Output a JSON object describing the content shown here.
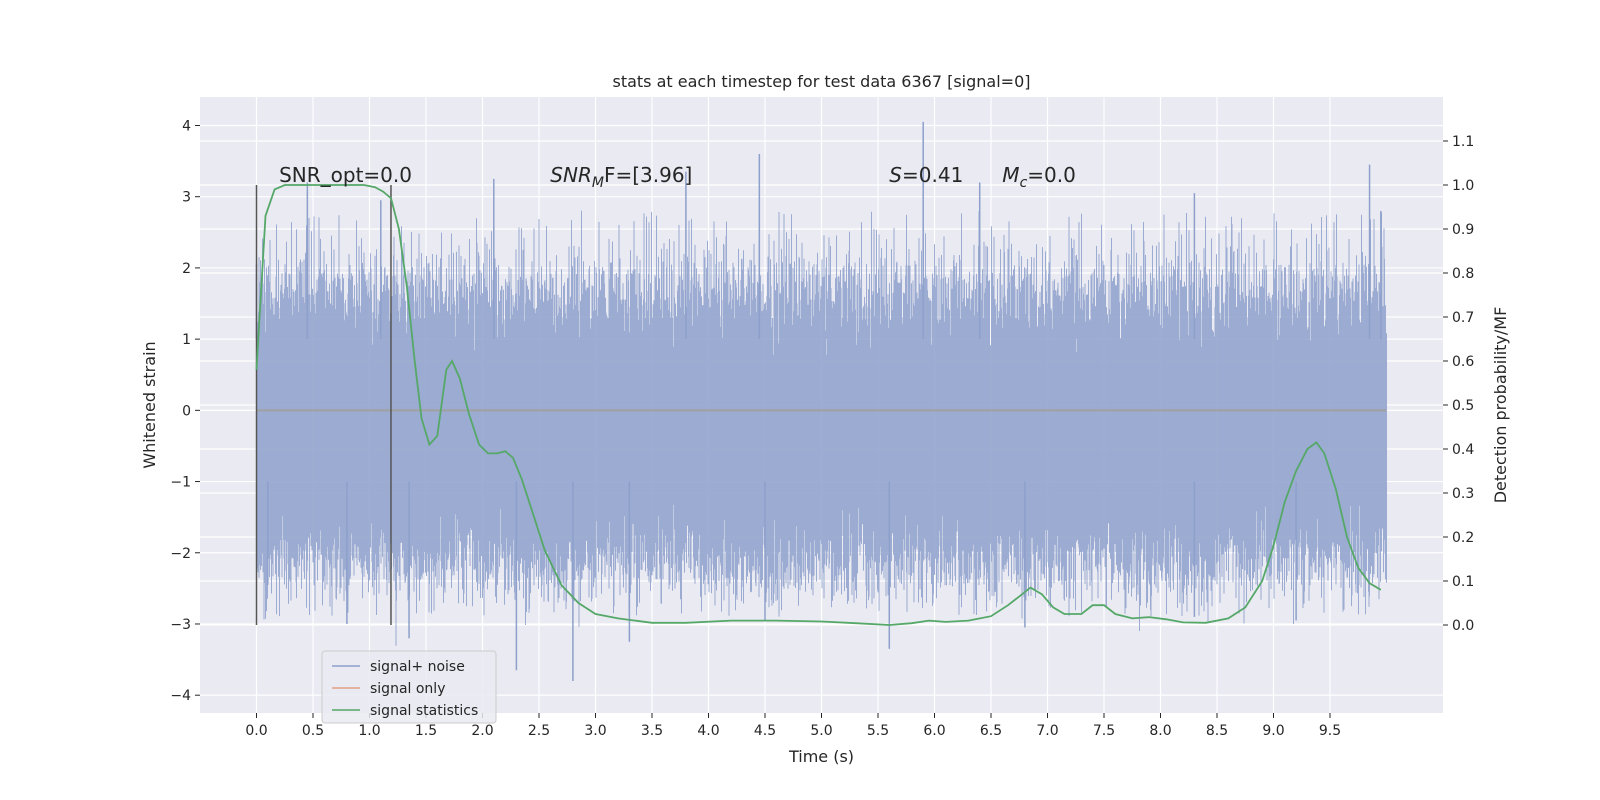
{
  "chart_data": {
    "type": "line",
    "title": "stats at each timestep for test data 6367 [signal=0]",
    "xlabel": "Time (s)",
    "ylabel": "Whitened strain",
    "y2label": "Detection probability/MF",
    "xlim": [
      -0.5,
      10.5
    ],
    "ylim": [
      -4.25,
      4.4
    ],
    "y2lim": [
      -0.2,
      1.2
    ],
    "xticks": [
      0.0,
      0.5,
      1.0,
      1.5,
      2.0,
      2.5,
      3.0,
      3.5,
      4.0,
      4.5,
      5.0,
      5.5,
      6.0,
      6.5,
      7.0,
      7.5,
      8.0,
      8.5,
      9.0,
      9.5
    ],
    "xtick_labels": [
      "0.0",
      "0.5",
      "1.0",
      "1.5",
      "2.0",
      "2.5",
      "3.0",
      "3.5",
      "4.0",
      "4.5",
      "5.0",
      "5.5",
      "6.0",
      "6.5",
      "7.0",
      "7.5",
      "8.0",
      "8.5",
      "9.0",
      "9.5"
    ],
    "yticks": [
      4,
      3,
      2,
      1,
      0,
      -1,
      -2,
      -3,
      -4
    ],
    "ytick_labels": [
      "4",
      "3",
      "2",
      "1",
      "0",
      "−1",
      "−2",
      "−3",
      "−4"
    ],
    "y2ticks": [
      1.1,
      1.0,
      0.9,
      0.8,
      0.7,
      0.6,
      0.5,
      0.4,
      0.3,
      0.2,
      0.1,
      0.0
    ],
    "y2tick_labels": [
      "1.1",
      "1.0",
      "0.9",
      "0.8",
      "0.7",
      "0.6",
      "0.5",
      "0.4",
      "0.3",
      "0.2",
      "0.1",
      "0.0"
    ],
    "grid": true,
    "legend_position": "bottom-left",
    "annotations": {
      "snr_opt": "SNR_opt=0.0",
      "snr_mf_prefix": "SNR",
      "snr_mf_sub": "M",
      "snr_mf_suffix": "F=[3.96]",
      "s_prefix": "S",
      "s_suffix": "=0.41",
      "mc_prefix": "M",
      "mc_sub": "c",
      "mc_suffix": "=0.0"
    },
    "markers": [
      {
        "x": 0.0,
        "y2_range": [
          0.0,
          1.0
        ]
      },
      {
        "x": 1.19,
        "y2_range": [
          0.0,
          1.0
        ]
      }
    ],
    "series": [
      {
        "name": "signal+ noise",
        "axis": "left",
        "color": "#8da0cb",
        "envelope": {
          "x_start": 0.0,
          "x_end": 10.0,
          "dense_low": -1.8,
          "dense_high": 1.35,
          "peaks_up": [
            [
              0.0,
              2.05
            ],
            [
              0.45,
              3.2
            ],
            [
              1.1,
              2.95
            ],
            [
              2.1,
              3.25
            ],
            [
              3.8,
              3.35
            ],
            [
              4.45,
              3.6
            ],
            [
              5.9,
              4.05
            ],
            [
              6.4,
              3.2
            ],
            [
              8.3,
              3.05
            ],
            [
              9.85,
              3.45
            ],
            [
              9.95,
              2.8
            ]
          ],
          "peaks_down": [
            [
              0.1,
              -2.45
            ],
            [
              0.8,
              -3.0
            ],
            [
              1.35,
              -3.2
            ],
            [
              2.3,
              -3.65
            ],
            [
              2.8,
              -3.8
            ],
            [
              3.3,
              -3.25
            ],
            [
              4.5,
              -2.95
            ],
            [
              5.6,
              -3.35
            ],
            [
              6.8,
              -3.05
            ],
            [
              8.3,
              -2.9
            ],
            [
              9.2,
              -2.95
            ]
          ]
        }
      },
      {
        "name": "signal only",
        "axis": "left",
        "color": "#e5a085",
        "x": [
          0.0,
          10.0
        ],
        "y": [
          0.0,
          0.0
        ]
      },
      {
        "name": "signal statistics",
        "axis": "right",
        "color": "#55a868",
        "x": [
          0.0,
          0.08,
          0.16,
          0.25,
          0.4,
          0.6,
          0.8,
          0.95,
          1.05,
          1.12,
          1.19,
          1.26,
          1.33,
          1.4,
          1.46,
          1.53,
          1.6,
          1.68,
          1.73,
          1.8,
          1.88,
          1.97,
          2.05,
          2.13,
          2.2,
          2.27,
          2.35,
          2.45,
          2.55,
          2.7,
          2.85,
          3.0,
          3.2,
          3.5,
          3.8,
          4.2,
          4.6,
          5.0,
          5.3,
          5.6,
          5.8,
          5.95,
          6.1,
          6.3,
          6.5,
          6.65,
          6.75,
          6.85,
          6.95,
          7.05,
          7.15,
          7.3,
          7.4,
          7.5,
          7.6,
          7.75,
          7.9,
          8.05,
          8.2,
          8.4,
          8.6,
          8.75,
          8.9,
          9.0,
          9.1,
          9.2,
          9.3,
          9.38,
          9.45,
          9.55,
          9.65,
          9.75,
          9.85,
          9.95
        ],
        "y": [
          0.58,
          0.93,
          0.99,
          1.0,
          1.0,
          1.0,
          1.0,
          1.0,
          0.995,
          0.985,
          0.97,
          0.9,
          0.77,
          0.6,
          0.47,
          0.41,
          0.43,
          0.58,
          0.6,
          0.56,
          0.48,
          0.41,
          0.39,
          0.39,
          0.395,
          0.38,
          0.33,
          0.25,
          0.17,
          0.09,
          0.05,
          0.025,
          0.015,
          0.005,
          0.005,
          0.01,
          0.01,
          0.008,
          0.004,
          0.0,
          0.004,
          0.01,
          0.007,
          0.01,
          0.02,
          0.045,
          0.065,
          0.085,
          0.07,
          0.04,
          0.025,
          0.025,
          0.045,
          0.045,
          0.025,
          0.015,
          0.018,
          0.013,
          0.006,
          0.005,
          0.015,
          0.04,
          0.1,
          0.18,
          0.28,
          0.35,
          0.4,
          0.415,
          0.39,
          0.31,
          0.2,
          0.13,
          0.095,
          0.08
        ]
      }
    ]
  }
}
